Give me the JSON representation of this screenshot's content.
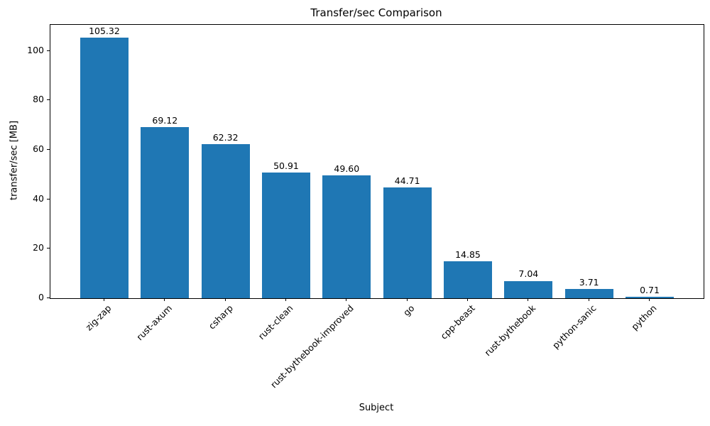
{
  "chart_data": {
    "type": "bar",
    "title": "Transfer/sec Comparison",
    "xlabel": "Subject",
    "ylabel": "transfer/sec [MB]",
    "categories": [
      "zig-zap",
      "rust-axum",
      "csharp",
      "rust-clean",
      "rust-bythebook-improved",
      "go",
      "cpp-beast",
      "rust-bythebook",
      "python-sanic",
      "python"
    ],
    "values": [
      105.32,
      69.12,
      62.32,
      50.91,
      49.6,
      44.71,
      14.85,
      7.04,
      3.71,
      0.71
    ],
    "bar_labels": [
      "105.32",
      "69.12",
      "62.32",
      "50.91",
      "49.60",
      "44.71",
      "14.85",
      "7.04",
      "3.71",
      "0.71"
    ],
    "bar_color": "#1f77b4",
    "axis_color": "#000000",
    "background": "#ffffff",
    "ylim": [
      0,
      110.59
    ],
    "yticks": [
      0,
      20,
      40,
      60,
      80,
      100
    ],
    "grid": false,
    "x_tick_rotation_deg": 45
  }
}
